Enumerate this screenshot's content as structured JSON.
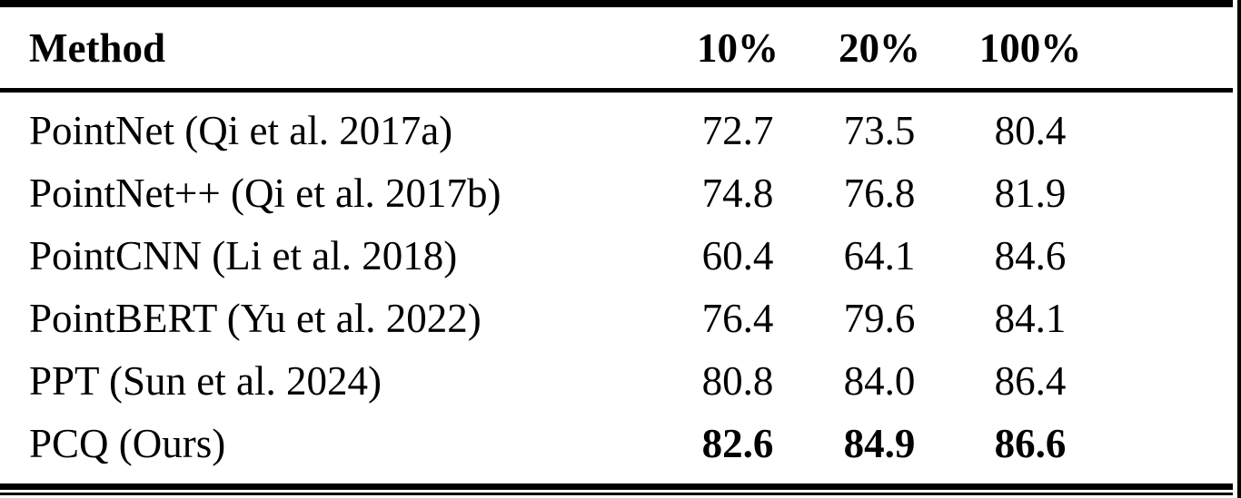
{
  "table": {
    "columns": [
      "Method",
      "10%",
      "20%",
      "100%"
    ],
    "rows": [
      {
        "method": "PointNet (Qi et al. 2017a)",
        "values": [
          "72.7",
          "73.5",
          "80.4"
        ],
        "emphasized": false
      },
      {
        "method": "PointNet++ (Qi et al. 2017b)",
        "values": [
          "74.8",
          "76.8",
          "81.9"
        ],
        "emphasized": false
      },
      {
        "method": "PointCNN (Li et al. 2018)",
        "values": [
          "60.4",
          "64.1",
          "84.6"
        ],
        "emphasized": false
      },
      {
        "method": "PointBERT (Yu et al. 2022)",
        "values": [
          "76.4",
          "79.6",
          "84.1"
        ],
        "emphasized": false
      },
      {
        "method": "PPT (Sun et al. 2024)",
        "values": [
          "80.8",
          "84.0",
          "86.4"
        ],
        "emphasized": false
      },
      {
        "method": "PCQ (Ours)",
        "values": [
          "82.6",
          "84.9",
          "86.6"
        ],
        "emphasized": true
      }
    ]
  },
  "chart_data": {
    "type": "table",
    "categories": [
      "10%",
      "20%",
      "100%"
    ],
    "series": [
      {
        "name": "PointNet (Qi et al. 2017a)",
        "values": [
          72.7,
          73.5,
          80.4
        ]
      },
      {
        "name": "PointNet++ (Qi et al. 2017b)",
        "values": [
          74.8,
          76.8,
          81.9
        ]
      },
      {
        "name": "PointCNN (Li et al. 2018)",
        "values": [
          60.4,
          64.1,
          84.6
        ]
      },
      {
        "name": "PointBERT (Yu et al. 2022)",
        "values": [
          76.4,
          79.6,
          84.1
        ]
      },
      {
        "name": "PPT (Sun et al. 2024)",
        "values": [
          80.8,
          84.0,
          86.4
        ]
      },
      {
        "name": "PCQ (Ours)",
        "values": [
          82.6,
          84.9,
          86.6
        ]
      }
    ],
    "title": ""
  },
  "colors": {
    "text": "#000000",
    "rule": "#000000",
    "background": "#ffffff"
  }
}
